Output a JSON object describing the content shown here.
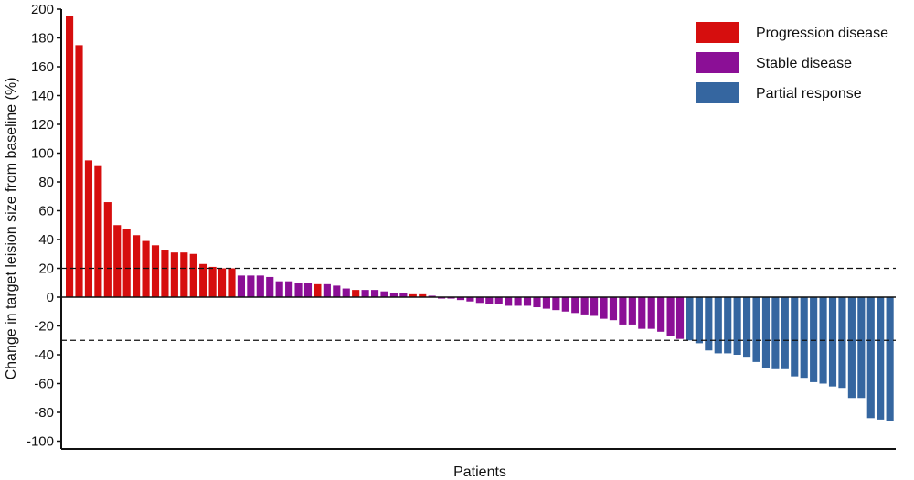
{
  "chart_data": {
    "type": "bar",
    "title": "",
    "xlabel": "Patients",
    "ylabel": "Change in target leision size from baseline (%)",
    "ylim": [
      -105,
      200
    ],
    "yticks": [
      200,
      180,
      160,
      140,
      120,
      100,
      80,
      60,
      40,
      20,
      0,
      -20,
      -40,
      -60,
      -80,
      -100
    ],
    "grid": false,
    "reference_lines": [
      20,
      -30
    ],
    "legend_position": "top-right",
    "colors": {
      "Progression disease": "#d60e0e",
      "Stable disease": "#8b0f96",
      "Partial response": "#3566a0"
    },
    "series": [
      {
        "name": "Progression disease"
      },
      {
        "name": "Stable disease"
      },
      {
        "name": "Partial response"
      }
    ],
    "bars": [
      {
        "value": 195,
        "group": "Progression disease"
      },
      {
        "value": 175,
        "group": "Progression disease"
      },
      {
        "value": 95,
        "group": "Progression disease"
      },
      {
        "value": 91,
        "group": "Progression disease"
      },
      {
        "value": 66,
        "group": "Progression disease"
      },
      {
        "value": 50,
        "group": "Progression disease"
      },
      {
        "value": 47,
        "group": "Progression disease"
      },
      {
        "value": 43,
        "group": "Progression disease"
      },
      {
        "value": 39,
        "group": "Progression disease"
      },
      {
        "value": 36,
        "group": "Progression disease"
      },
      {
        "value": 33,
        "group": "Progression disease"
      },
      {
        "value": 31,
        "group": "Progression disease"
      },
      {
        "value": 31,
        "group": "Progression disease"
      },
      {
        "value": 30,
        "group": "Progression disease"
      },
      {
        "value": 23,
        "group": "Progression disease"
      },
      {
        "value": 21,
        "group": "Progression disease"
      },
      {
        "value": 20,
        "group": "Progression disease"
      },
      {
        "value": 20,
        "group": "Progression disease"
      },
      {
        "value": 15,
        "group": "Stable disease"
      },
      {
        "value": 15,
        "group": "Stable disease"
      },
      {
        "value": 15,
        "group": "Stable disease"
      },
      {
        "value": 14,
        "group": "Stable disease"
      },
      {
        "value": 11,
        "group": "Stable disease"
      },
      {
        "value": 11,
        "group": "Stable disease"
      },
      {
        "value": 10,
        "group": "Stable disease"
      },
      {
        "value": 10,
        "group": "Stable disease"
      },
      {
        "value": 9,
        "group": "Progression disease"
      },
      {
        "value": 9,
        "group": "Stable disease"
      },
      {
        "value": 8,
        "group": "Stable disease"
      },
      {
        "value": 6,
        "group": "Stable disease"
      },
      {
        "value": 5,
        "group": "Progression disease"
      },
      {
        "value": 5,
        "group": "Stable disease"
      },
      {
        "value": 5,
        "group": "Stable disease"
      },
      {
        "value": 4,
        "group": "Stable disease"
      },
      {
        "value": 3,
        "group": "Stable disease"
      },
      {
        "value": 3,
        "group": "Stable disease"
      },
      {
        "value": 2,
        "group": "Progression disease"
      },
      {
        "value": 2,
        "group": "Progression disease"
      },
      {
        "value": 1,
        "group": "Stable disease"
      },
      {
        "value": -1,
        "group": "Stable disease"
      },
      {
        "value": -1,
        "group": "Stable disease"
      },
      {
        "value": -2,
        "group": "Stable disease"
      },
      {
        "value": -3,
        "group": "Stable disease"
      },
      {
        "value": -4,
        "group": "Stable disease"
      },
      {
        "value": -5,
        "group": "Stable disease"
      },
      {
        "value": -5,
        "group": "Stable disease"
      },
      {
        "value": -6,
        "group": "Stable disease"
      },
      {
        "value": -6,
        "group": "Stable disease"
      },
      {
        "value": -6,
        "group": "Stable disease"
      },
      {
        "value": -7,
        "group": "Stable disease"
      },
      {
        "value": -8,
        "group": "Stable disease"
      },
      {
        "value": -9,
        "group": "Stable disease"
      },
      {
        "value": -10,
        "group": "Stable disease"
      },
      {
        "value": -11,
        "group": "Stable disease"
      },
      {
        "value": -12,
        "group": "Stable disease"
      },
      {
        "value": -13,
        "group": "Stable disease"
      },
      {
        "value": -15,
        "group": "Stable disease"
      },
      {
        "value": -16,
        "group": "Stable disease"
      },
      {
        "value": -19,
        "group": "Stable disease"
      },
      {
        "value": -19,
        "group": "Stable disease"
      },
      {
        "value": -22,
        "group": "Stable disease"
      },
      {
        "value": -22,
        "group": "Stable disease"
      },
      {
        "value": -24,
        "group": "Stable disease"
      },
      {
        "value": -27,
        "group": "Stable disease"
      },
      {
        "value": -29,
        "group": "Stable disease"
      },
      {
        "value": -30,
        "group": "Partial response"
      },
      {
        "value": -32,
        "group": "Partial response"
      },
      {
        "value": -37,
        "group": "Partial response"
      },
      {
        "value": -39,
        "group": "Partial response"
      },
      {
        "value": -39,
        "group": "Partial response"
      },
      {
        "value": -40,
        "group": "Partial response"
      },
      {
        "value": -42,
        "group": "Partial response"
      },
      {
        "value": -45,
        "group": "Partial response"
      },
      {
        "value": -49,
        "group": "Partial response"
      },
      {
        "value": -50,
        "group": "Partial response"
      },
      {
        "value": -50,
        "group": "Partial response"
      },
      {
        "value": -55,
        "group": "Partial response"
      },
      {
        "value": -56,
        "group": "Partial response"
      },
      {
        "value": -59,
        "group": "Partial response"
      },
      {
        "value": -60,
        "group": "Partial response"
      },
      {
        "value": -62,
        "group": "Partial response"
      },
      {
        "value": -63,
        "group": "Partial response"
      },
      {
        "value": -70,
        "group": "Partial response"
      },
      {
        "value": -70,
        "group": "Partial response"
      },
      {
        "value": -84,
        "group": "Partial response"
      },
      {
        "value": -85,
        "group": "Partial response"
      },
      {
        "value": -86,
        "group": "Partial response"
      }
    ]
  }
}
